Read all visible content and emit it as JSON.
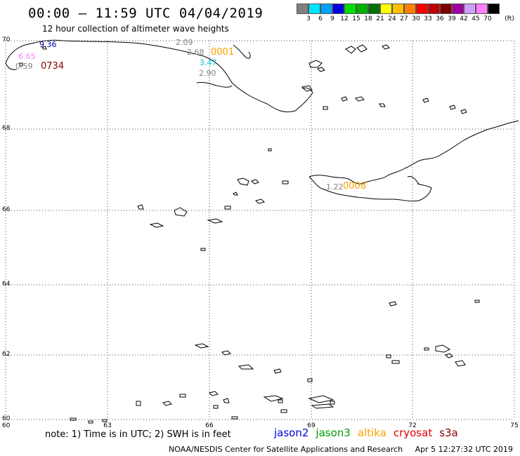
{
  "header": {
    "title": "00:00 – 11:59 UTC 04/04/2019",
    "subtitle": "12 hour collection of altimeter wave heights"
  },
  "colorbar": {
    "colors": [
      "#808080",
      "#00e5ff",
      "#00a0ff",
      "#0000e0",
      "#00e000",
      "#00b000",
      "#007000",
      "#ffff00",
      "#ffc000",
      "#ff8000",
      "#ff0000",
      "#c00000",
      "#800000",
      "#a000a0",
      "#d0a0ff",
      "#ff80ff",
      "#000000"
    ],
    "labels": [
      "3",
      "6",
      "9",
      "12",
      "15",
      "18",
      "21",
      "24",
      "27",
      "30",
      "33",
      "36",
      "39",
      "42",
      "45",
      "70"
    ],
    "unit": "(ft)"
  },
  "axes": {
    "lat_labels": [
      "70",
      "68",
      "66",
      "64",
      "62",
      "60"
    ],
    "lon_labels": [
      "60",
      "63",
      "66",
      "69",
      "72",
      "75"
    ]
  },
  "wave_labels": [
    {
      "text": "9.36",
      "color": "#0000a0"
    },
    {
      "text": "6.65",
      "color": "#ff80ff"
    },
    {
      "text": "0.59",
      "color": "#808080"
    },
    {
      "text": "0734",
      "color": "#800000"
    },
    {
      "text": "2.09",
      "color": "#808080"
    },
    {
      "text": "2.68",
      "color": "#808080"
    },
    {
      "text": "0001",
      "color": "#ffa000"
    },
    {
      "text": "3.47",
      "color": "#00c8e0"
    },
    {
      "text": "2.90",
      "color": "#808080"
    },
    {
      "text": "1.22",
      "color": "#808080"
    },
    {
      "text": "0008",
      "color": "#ffa000"
    }
  ],
  "note": "note: 1) Time is in UTC; 2) SWH is in feet",
  "satellites": [
    {
      "name": "jason2",
      "color": "#0000e0"
    },
    {
      "name": "jason3",
      "color": "#00a000"
    },
    {
      "name": "altika",
      "color": "#ffa000"
    },
    {
      "name": "cryosat",
      "color": "#e00000"
    },
    {
      "name": "s3a",
      "color": "#800000"
    }
  ],
  "footer": {
    "credit": "NOAA/NESDIS Center for Satellite Applications and Research",
    "timestamp": "Apr  5 12:27:32 UTC 2019"
  }
}
